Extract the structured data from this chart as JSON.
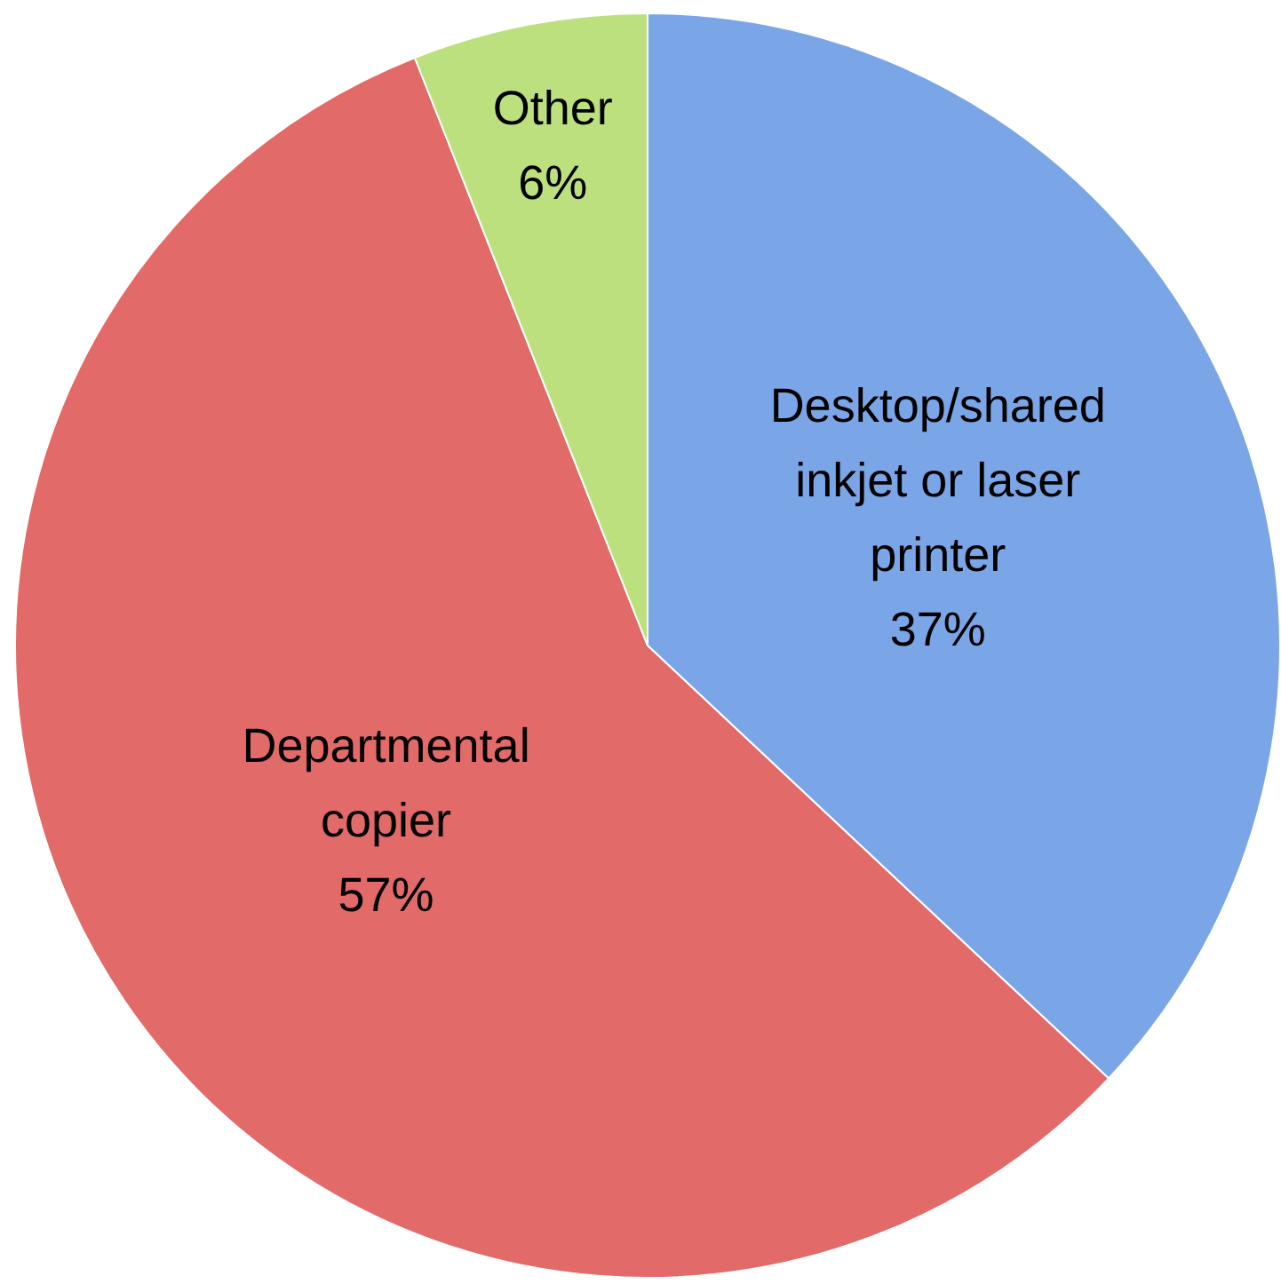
{
  "chart_data": {
    "type": "pie",
    "categories": [
      "Desktop/shared inkjet or laser printer",
      "Departmental copier",
      "Other"
    ],
    "values": [
      37,
      57,
      6
    ],
    "value_labels": [
      "37%",
      "57%",
      "6%"
    ],
    "colors": [
      "#7aa6e8",
      "#e26a68",
      "#bde07e"
    ]
  }
}
